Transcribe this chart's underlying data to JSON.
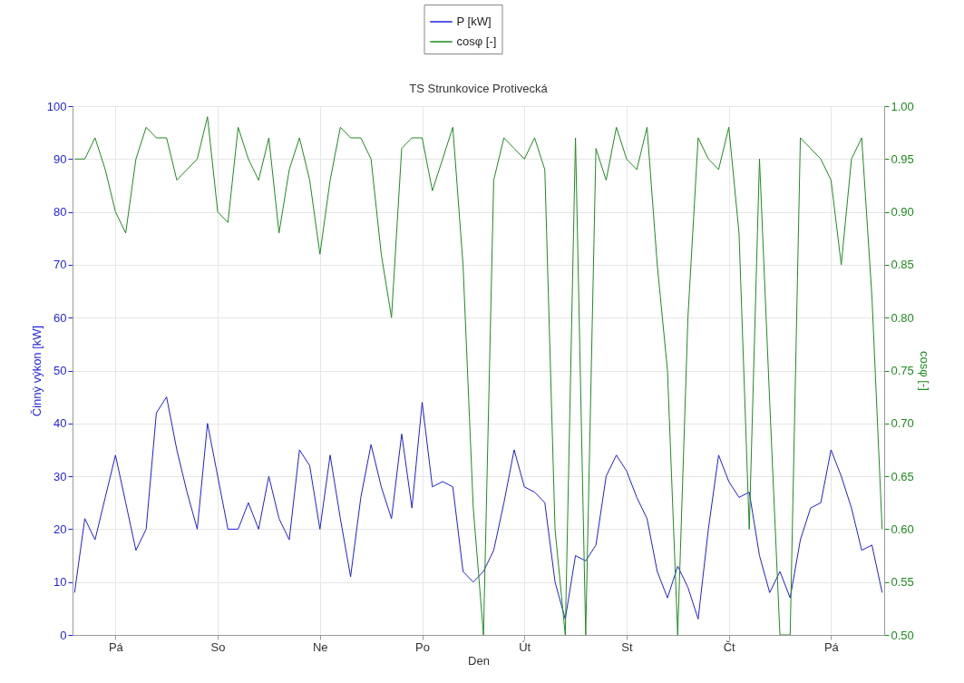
{
  "chart_data": {
    "type": "line",
    "title": "TS Strunkovice Protivecká",
    "xlabel": "Den",
    "ylabel": "Činný výkon [kW]",
    "y2label": "cosφ [-]",
    "categories": [
      null,
      null,
      null,
      null,
      "Pá",
      null,
      null,
      null,
      null,
      null,
      null,
      null,
      null,
      null,
      "So",
      null,
      null,
      null,
      null,
      null,
      null,
      null,
      null,
      null,
      "Ne",
      null,
      null,
      null,
      null,
      null,
      null,
      null,
      null,
      null,
      "Po",
      null,
      null,
      null,
      null,
      null,
      null,
      null,
      null,
      null,
      "Út",
      null,
      null,
      null,
      null,
      null,
      null,
      null,
      null,
      null,
      "St",
      null,
      null,
      null,
      null,
      null,
      null,
      null,
      null,
      null,
      "Čt",
      null,
      null,
      null,
      null,
      null,
      null,
      null,
      null,
      null,
      "Pá",
      null,
      null,
      null,
      null,
      null
    ],
    "ylim": [
      0,
      100
    ],
    "yticks": [
      0,
      10,
      20,
      30,
      40,
      50,
      60,
      70,
      80,
      90,
      100
    ],
    "y2lim": [
      0.5,
      1.0
    ],
    "y2ticks": [
      {
        "value": 0.5,
        "label": "0.50"
      },
      {
        "value": 0.55,
        "label": "0.55"
      },
      {
        "value": 0.6,
        "label": "0.60"
      },
      {
        "value": 0.65,
        "label": "0.65"
      },
      {
        "value": 0.7,
        "label": "0.70"
      },
      {
        "value": 0.75,
        "label": "0.75"
      },
      {
        "value": 0.8,
        "label": "0.80"
      },
      {
        "value": 0.85,
        "label": "0.85"
      },
      {
        "value": 0.9,
        "label": "0.90"
      },
      {
        "value": 0.95,
        "label": "0.95"
      },
      {
        "value": 1.0,
        "label": "1.00"
      }
    ],
    "grid": true,
    "legend": "top",
    "series": [
      {
        "name": "P [kW]",
        "color": "#1f1fe0",
        "values": [
          8,
          22,
          18,
          26,
          34,
          25,
          16,
          20,
          42,
          45,
          35,
          27,
          20,
          40,
          30,
          20,
          20,
          25,
          20,
          30,
          22,
          18,
          35,
          32,
          20,
          34,
          22,
          11,
          26,
          36,
          28,
          22,
          38,
          24,
          44,
          28,
          29,
          28,
          12,
          10,
          12,
          16,
          25,
          35,
          28,
          27,
          25,
          10,
          3,
          15,
          14,
          17,
          30,
          34,
          31,
          26,
          22,
          12,
          7,
          13,
          9,
          3,
          20,
          34,
          29,
          26,
          27,
          15,
          8,
          12,
          7,
          18,
          24,
          25,
          35,
          30,
          24,
          16,
          17,
          8
        ]
      },
      {
        "name": "cosφ [-]",
        "color": "#1e8c1e",
        "axis": "y2",
        "values": [
          0.95,
          0.95,
          0.97,
          0.94,
          0.9,
          0.88,
          0.95,
          0.98,
          0.97,
          0.97,
          0.93,
          0.94,
          0.95,
          0.99,
          0.9,
          0.89,
          0.98,
          0.95,
          0.93,
          0.97,
          0.88,
          0.94,
          0.97,
          0.93,
          0.86,
          0.93,
          0.98,
          0.97,
          0.97,
          0.95,
          0.86,
          0.8,
          0.96,
          0.97,
          0.97,
          0.92,
          0.95,
          0.98,
          0.85,
          0.62,
          0.5,
          0.93,
          0.97,
          0.96,
          0.95,
          0.97,
          0.94,
          0.6,
          0.5,
          0.97,
          0.5,
          0.96,
          0.93,
          0.98,
          0.95,
          0.94,
          0.98,
          0.85,
          0.75,
          0.5,
          0.8,
          0.97,
          0.95,
          0.94,
          0.98,
          0.88,
          0.6,
          0.95,
          0.72,
          0.5,
          0.5,
          0.97,
          0.96,
          0.95,
          0.93,
          0.85,
          0.95,
          0.97,
          0.82,
          0.6
        ]
      }
    ]
  }
}
